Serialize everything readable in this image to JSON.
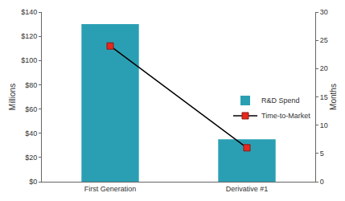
{
  "chart_data": {
    "type": "bar",
    "categories": [
      "First Generation",
      "Derivative #1"
    ],
    "series": [
      {
        "name": "R&D Spend",
        "type": "bar",
        "color": "#2a9fb3",
        "values": [
          130,
          35
        ]
      },
      {
        "name": "Time-to-Market",
        "type": "line",
        "axis": "y2",
        "color": "#000000",
        "marker": "square",
        "values": [
          24,
          6
        ]
      }
    ],
    "ylabel": "Millions",
    "y2label": "Months",
    "ylim": [
      0,
      140
    ],
    "yticks": [
      {
        "value": 0,
        "label": "$0"
      },
      {
        "value": 20,
        "label": "$20"
      },
      {
        "value": 40,
        "label": "$40"
      },
      {
        "value": 60,
        "label": "$60"
      },
      {
        "value": 80,
        "label": "$80"
      },
      {
        "value": 100,
        "label": "$100"
      },
      {
        "value": 120,
        "label": "$120"
      },
      {
        "value": 140,
        "label": "$140"
      }
    ],
    "y2lim": [
      0,
      30
    ],
    "y2ticks": [
      0,
      5,
      10,
      15,
      20,
      25,
      30
    ],
    "grid": false,
    "legend": "lower right"
  }
}
